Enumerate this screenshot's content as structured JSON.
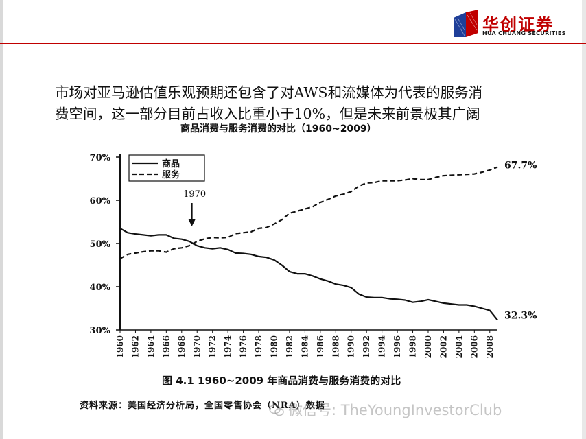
{
  "header": {
    "logo_cn": "华创证券",
    "logo_en": "HUA CHUANG SECURITIES",
    "accent_color": "#c00000"
  },
  "headline": {
    "line1": "市场对亚马逊估值乐观预期还包含了对AWS和流媒体为代表的服务消",
    "line2": "费空间，这一部分目前占收入比重小于10%，但是未来前景极其广阔"
  },
  "figure": {
    "caption": "图 4.1    1960~2009 年商品消费与服务消费的对比",
    "source": "资料来源：美国经济分析局，全国零售协会（NRA）数据",
    "watermark": "微信号: TheYoungInvestorClub"
  },
  "chart_data": {
    "type": "line",
    "title": "商品消费与服务消费的对比（1960~2009）",
    "xlabel": "",
    "ylabel": "",
    "ylim": [
      30,
      70
    ],
    "xlim": [
      1960,
      2009
    ],
    "y_ticks": [
      "30%",
      "40%",
      "50%",
      "60%",
      "70%"
    ],
    "x_ticks": [
      "1960",
      "1962",
      "1964",
      "1966",
      "1968",
      "1970",
      "1972",
      "1974",
      "1976",
      "1978",
      "1980",
      "1982",
      "1984",
      "1986",
      "1988",
      "1990",
      "1992",
      "1994",
      "1996",
      "1998",
      "2000",
      "2002",
      "2004",
      "2006",
      "2008"
    ],
    "grid": false,
    "legend_position": "top-left",
    "x": [
      1960,
      1961,
      1962,
      1963,
      1964,
      1965,
      1966,
      1967,
      1968,
      1969,
      1970,
      1971,
      1972,
      1973,
      1974,
      1975,
      1976,
      1977,
      1978,
      1979,
      1980,
      1981,
      1982,
      1983,
      1984,
      1985,
      1986,
      1987,
      1988,
      1989,
      1990,
      1991,
      1992,
      1993,
      1994,
      1995,
      1996,
      1997,
      1998,
      1999,
      2000,
      2001,
      2002,
      2003,
      2004,
      2005,
      2006,
      2007,
      2008,
      2009
    ],
    "series": [
      {
        "name": "商品",
        "style": "solid",
        "values": [
          53.5,
          52.5,
          52.2,
          52.0,
          51.8,
          52.0,
          52.0,
          51.2,
          51.0,
          50.5,
          49.5,
          49.0,
          48.8,
          49.0,
          48.6,
          47.8,
          47.7,
          47.5,
          47.0,
          46.8,
          46.2,
          45.0,
          43.5,
          43.0,
          43.0,
          42.5,
          41.8,
          41.3,
          40.6,
          40.3,
          39.8,
          38.3,
          37.6,
          37.5,
          37.5,
          37.2,
          37.1,
          36.9,
          36.4,
          36.6,
          37.0,
          36.6,
          36.2,
          36.0,
          35.8,
          35.8,
          35.5,
          35.0,
          34.5,
          32.3
        ]
      },
      {
        "name": "服务",
        "style": "dashed",
        "values": [
          46.5,
          47.5,
          47.8,
          48.1,
          48.3,
          48.3,
          48.0,
          48.8,
          49.0,
          49.5,
          50.5,
          51.1,
          51.4,
          51.3,
          51.4,
          52.3,
          52.5,
          52.7,
          53.5,
          53.7,
          54.5,
          55.5,
          57.0,
          57.5,
          58.0,
          58.5,
          59.5,
          60.2,
          61.0,
          61.4,
          62.0,
          63.3,
          64.0,
          64.1,
          64.5,
          64.5,
          64.5,
          64.7,
          65.0,
          64.8,
          64.8,
          65.3,
          65.7,
          65.8,
          65.9,
          66.0,
          66.1,
          66.5,
          67.0,
          67.7
        ]
      }
    ],
    "annotations": [
      {
        "text": "1970",
        "x": 1969.5,
        "y": 50.5,
        "arrow": "down"
      },
      {
        "text": "67.7%",
        "x": 2009,
        "y": 67.7,
        "series": "服务"
      },
      {
        "text": "32.3%",
        "x": 2009,
        "y": 32.3,
        "series": "商品"
      }
    ]
  }
}
